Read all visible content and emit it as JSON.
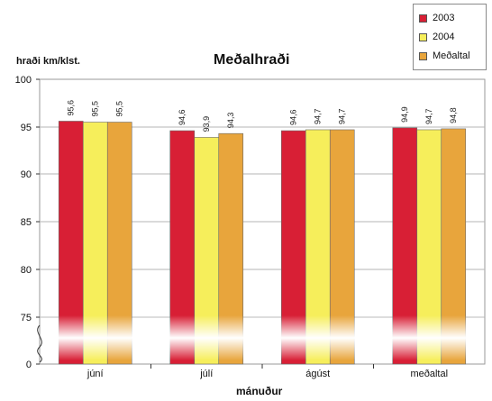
{
  "chart_data": {
    "type": "bar",
    "title": "Meðalhraði",
    "ylabel": "hraði km/klst.",
    "xlabel": "mánuður",
    "categories": [
      "júní",
      "júlí",
      "ágúst",
      "meðaltal"
    ],
    "series": [
      {
        "name": "2003",
        "color": "#d81f35",
        "values": [
          95.6,
          94.6,
          94.6,
          94.9
        ],
        "labels": [
          "95,6",
          "94,6",
          "94,6",
          "94,9"
        ]
      },
      {
        "name": "2004",
        "color": "#f6ee5b",
        "values": [
          95.5,
          93.9,
          94.7,
          94.7
        ],
        "labels": [
          "95,5",
          "93,9",
          "94,7",
          "94,7"
        ]
      },
      {
        "name": "Meðaltal",
        "color": "#e8a53c",
        "values": [
          95.5,
          94.3,
          94.7,
          94.8
        ],
        "labels": [
          "95,5",
          "94,3",
          "94,7",
          "94,8"
        ]
      }
    ],
    "yticks": [
      0,
      75,
      80,
      85,
      90,
      95,
      100
    ],
    "ylim": [
      70,
      100
    ],
    "axis_break": true,
    "grid": true,
    "legend_position": "top-right"
  }
}
